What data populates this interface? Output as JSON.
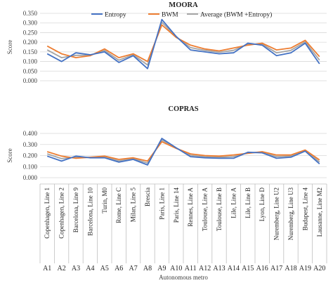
{
  "chart_data": {
    "type": "line",
    "categories": [
      "Copenhagen, Line 1",
      "Copenhagen, Line 2",
      "Barcelona, Line 9",
      "Barcelona, Line 10",
      "Turin, M0",
      "Rome, Line C",
      "Milan, Line 5",
      "Brescia",
      "Paris, Line 1",
      "Paris, Line 14",
      "Rennes, Line A",
      "Toulouse, Line A",
      "Toulouse, Line B",
      "Lile, Line A",
      "Lile, Line B",
      "Lyon, Line D",
      "Nuremberg, Line U2",
      "Nuremberg, Line U3",
      "Budapest, Line 4",
      "Lausanne, Line M2"
    ],
    "codes": [
      "A1",
      "A2",
      "A3",
      "A4",
      "A5",
      "A6",
      "A7",
      "A8",
      "A9",
      "A10",
      "A11",
      "A12",
      "A13",
      "A14",
      "A15",
      "A16",
      "A17",
      "A18",
      "A19",
      "A20"
    ],
    "xlabel": "Autonomous metro",
    "series_colors": [
      "#4472C4",
      "#ED7D31",
      "#A5A5A5"
    ],
    "legend": [
      "Entropy",
      "BWM",
      "Average (BWM +Entropy)"
    ],
    "panels": [
      {
        "title": "MOORA",
        "ylabel": "Score",
        "ylim": [
          0,
          0.35
        ],
        "yticks": [
          "0.000",
          "0.050",
          "0.100",
          "0.150",
          "0.200",
          "0.250",
          "0.300",
          "0.350"
        ],
        "series": [
          {
            "name": "Entropy",
            "values": [
              0.14,
              0.1,
              0.145,
              0.135,
              0.15,
              0.095,
              0.13,
              0.063,
              0.318,
              0.23,
              0.16,
              0.15,
              0.14,
              0.145,
              0.195,
              0.185,
              0.13,
              0.145,
              0.195,
              0.088
            ]
          },
          {
            "name": "BWM",
            "values": [
              0.18,
              0.14,
              0.12,
              0.13,
              0.165,
              0.12,
              0.14,
              0.1,
              0.29,
              0.225,
              0.185,
              0.165,
              0.155,
              0.17,
              0.185,
              0.195,
              0.16,
              0.17,
              0.21,
              0.125
            ]
          },
          {
            "name": "Average (BWM +Entropy)",
            "values": [
              0.16,
              0.12,
              0.132,
              0.132,
              0.157,
              0.107,
              0.135,
              0.082,
              0.304,
              0.228,
              0.172,
              0.158,
              0.148,
              0.158,
              0.19,
              0.19,
              0.145,
              0.158,
              0.202,
              0.107
            ]
          }
        ]
      },
      {
        "title": "COPRAS",
        "ylabel": "Score",
        "ylim": [
          0,
          0.4
        ],
        "yticks": [
          "0.000",
          "0.100",
          "0.200",
          "0.300",
          "0.400"
        ],
        "series": [
          {
            "name": "Entropy",
            "values": [
              0.195,
              0.15,
              0.195,
              0.18,
              0.18,
              0.14,
              0.165,
              0.115,
              0.355,
              0.27,
              0.19,
              0.18,
              0.175,
              0.175,
              0.23,
              0.225,
              0.175,
              0.185,
              0.24,
              0.125
            ]
          },
          {
            "name": "BWM",
            "values": [
              0.235,
              0.195,
              0.175,
              0.185,
              0.195,
              0.165,
              0.18,
              0.15,
              0.325,
              0.265,
              0.215,
              0.2,
              0.195,
              0.205,
              0.22,
              0.235,
              0.205,
              0.205,
              0.25,
              0.16
            ]
          },
          {
            "name": "Average (BWM +Entropy)",
            "values": [
              0.215,
              0.172,
              0.185,
              0.182,
              0.188,
              0.152,
              0.172,
              0.132,
              0.34,
              0.268,
              0.202,
              0.19,
              0.185,
              0.19,
              0.225,
              0.23,
              0.19,
              0.195,
              0.245,
              0.142
            ]
          }
        ]
      }
    ]
  }
}
